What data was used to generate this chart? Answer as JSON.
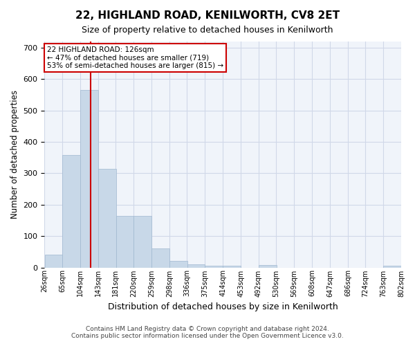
{
  "title": "22, HIGHLAND ROAD, KENILWORTH, CV8 2ET",
  "subtitle": "Size of property relative to detached houses in Kenilworth",
  "xlabel": "Distribution of detached houses by size in Kenilworth",
  "ylabel": "Number of detached properties",
  "footer_line1": "Contains HM Land Registry data © Crown copyright and database right 2024.",
  "footer_line2": "Contains public sector information licensed under the Open Government Licence v3.0.",
  "bin_edges": [
    26,
    65,
    104,
    143,
    181,
    220,
    259,
    298,
    336,
    375,
    414,
    453,
    492,
    530,
    569,
    608,
    647,
    686,
    724,
    763,
    802
  ],
  "bin_labels": [
    "26sqm",
    "65sqm",
    "104sqm",
    "143sqm",
    "181sqm",
    "220sqm",
    "259sqm",
    "298sqm",
    "336sqm",
    "375sqm",
    "414sqm",
    "453sqm",
    "492sqm",
    "530sqm",
    "569sqm",
    "608sqm",
    "647sqm",
    "686sqm",
    "724sqm",
    "763sqm",
    "802sqm"
  ],
  "bar_heights": [
    40,
    358,
    565,
    315,
    165,
    165,
    60,
    22,
    10,
    5,
    5,
    0,
    7,
    0,
    0,
    0,
    0,
    0,
    0,
    5
  ],
  "bar_color": "#c8d8e8",
  "bar_edge_color": "#a0b8d0",
  "grid_color": "#d0d8e8",
  "property_size": 126,
  "property_label": "22 HIGHLAND ROAD: 126sqm",
  "annotation_line1": "← 47% of detached houses are smaller (719)",
  "annotation_line2": "53% of semi-detached houses are larger (815) →",
  "vline_color": "#cc0000",
  "annotation_box_edge": "#cc0000",
  "ylim": [
    0,
    720
  ],
  "yticks": [
    0,
    100,
    200,
    300,
    400,
    500,
    600,
    700
  ],
  "background_color": "#ffffff",
  "plot_bg_color": "#f0f4fa"
}
